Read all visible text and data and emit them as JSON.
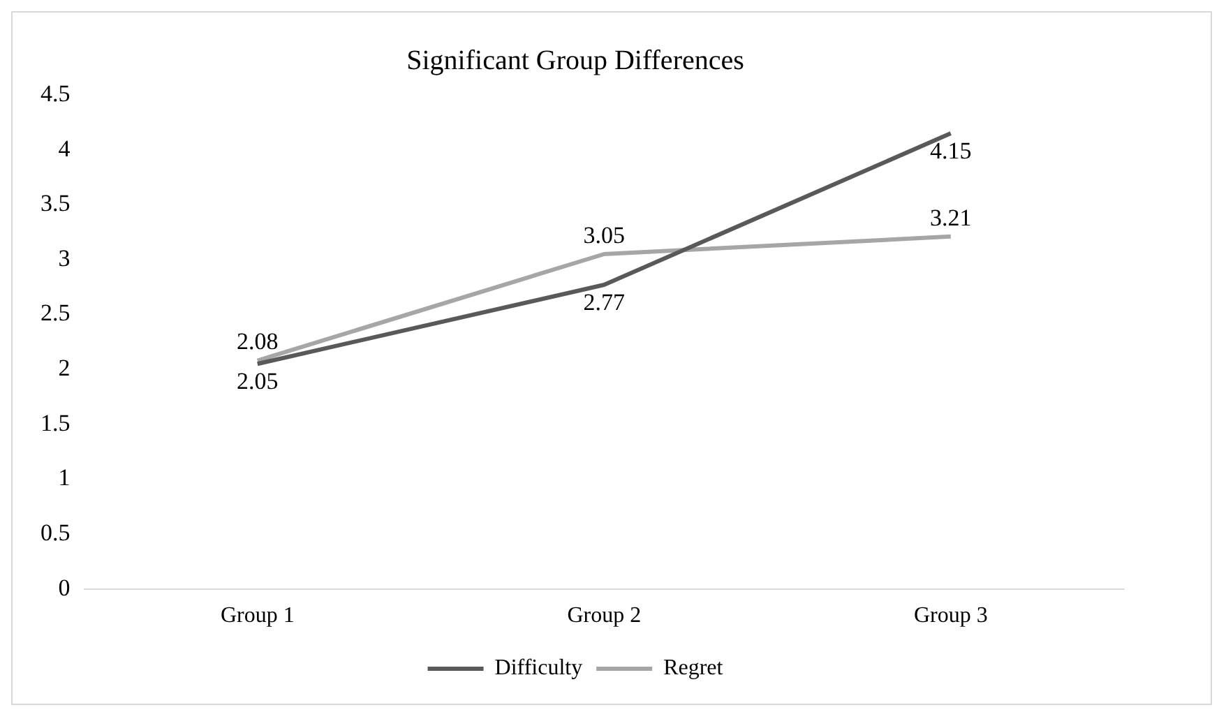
{
  "chart_data": {
    "type": "line",
    "title": "Significant Group Differences",
    "categories": [
      "Group 1",
      "Group 2",
      "Group 3"
    ],
    "series": [
      {
        "name": "Difficulty",
        "color": "#595959",
        "values": [
          2.05,
          2.77,
          4.15
        ]
      },
      {
        "name": "Regret",
        "color": "#a6a6a6",
        "values": [
          2.08,
          3.05,
          3.21
        ]
      }
    ],
    "ylim": [
      0,
      4.5
    ],
    "yticks": [
      0,
      0.5,
      1,
      1.5,
      2,
      2.5,
      3,
      3.5,
      4,
      4.5
    ],
    "grid": false,
    "legend": "bottom",
    "marker": "none",
    "line_style": "solid",
    "data_labels": true
  }
}
